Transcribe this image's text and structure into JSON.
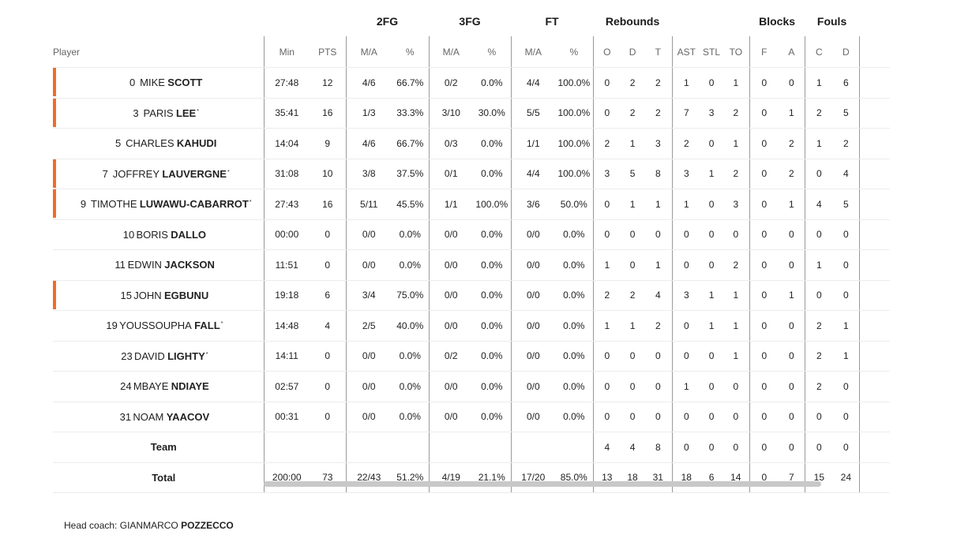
{
  "groups": {
    "fg2": "2FG",
    "fg3": "3FG",
    "ft": "FT",
    "reb": "Rebounds",
    "blk": "Blocks",
    "fouls": "Fouls"
  },
  "columns": {
    "player": "Player",
    "min": "Min",
    "pts": "PTS",
    "ma": "M/A",
    "pct": "%",
    "o": "O",
    "d": "D",
    "t": "T",
    "ast": "AST",
    "stl": "STL",
    "to": "TO",
    "f": "F",
    "a": "A",
    "c": "C",
    "fd": "D"
  },
  "accent_color": "#f26b2a",
  "players": [
    {
      "num": "0",
      "first": "MIKE",
      "last": "SCOTT",
      "mark": "",
      "starter": true,
      "min": "27:48",
      "pts": "12",
      "fg2": "4/6",
      "fg2p": "66.7%",
      "fg3": "0/2",
      "fg3p": "0.0%",
      "ft": "4/4",
      "ftp": "100.0%",
      "o": "0",
      "d": "2",
      "t": "2",
      "ast": "1",
      "stl": "0",
      "to": "1",
      "bf": "0",
      "ba": "0",
      "fc": "1",
      "fd": "6"
    },
    {
      "num": "3",
      "first": "PARIS",
      "last": "LEE",
      "mark": "*",
      "starter": true,
      "min": "35:41",
      "pts": "16",
      "fg2": "1/3",
      "fg2p": "33.3%",
      "fg3": "3/10",
      "fg3p": "30.0%",
      "ft": "5/5",
      "ftp": "100.0%",
      "o": "0",
      "d": "2",
      "t": "2",
      "ast": "7",
      "stl": "3",
      "to": "2",
      "bf": "0",
      "ba": "1",
      "fc": "2",
      "fd": "5"
    },
    {
      "num": "5",
      "first": "CHARLES",
      "last": "KAHUDI",
      "mark": "",
      "starter": false,
      "min": "14:04",
      "pts": "9",
      "fg2": "4/6",
      "fg2p": "66.7%",
      "fg3": "0/3",
      "fg3p": "0.0%",
      "ft": "1/1",
      "ftp": "100.0%",
      "o": "2",
      "d": "1",
      "t": "3",
      "ast": "2",
      "stl": "0",
      "to": "1",
      "bf": "0",
      "ba": "2",
      "fc": "1",
      "fd": "2"
    },
    {
      "num": "7",
      "first": "JOFFREY",
      "last": "LAUVERGNE",
      "mark": "*",
      "starter": true,
      "min": "31:08",
      "pts": "10",
      "fg2": "3/8",
      "fg2p": "37.5%",
      "fg3": "0/1",
      "fg3p": "0.0%",
      "ft": "4/4",
      "ftp": "100.0%",
      "o": "3",
      "d": "5",
      "t": "8",
      "ast": "3",
      "stl": "1",
      "to": "2",
      "bf": "0",
      "ba": "2",
      "fc": "0",
      "fd": "4"
    },
    {
      "num": "9",
      "first": "TIMOTHE",
      "last": "LUWAWU-CABARROT",
      "mark": "*",
      "starter": true,
      "min": "27:43",
      "pts": "16",
      "fg2": "5/11",
      "fg2p": "45.5%",
      "fg3": "1/1",
      "fg3p": "100.0%",
      "ft": "3/6",
      "ftp": "50.0%",
      "o": "0",
      "d": "1",
      "t": "1",
      "ast": "1",
      "stl": "0",
      "to": "3",
      "bf": "0",
      "ba": "1",
      "fc": "4",
      "fd": "5"
    },
    {
      "num": "10",
      "first": "BORIS",
      "last": "DALLO",
      "mark": "",
      "starter": false,
      "min": "00:00",
      "pts": "0",
      "fg2": "0/0",
      "fg2p": "0.0%",
      "fg3": "0/0",
      "fg3p": "0.0%",
      "ft": "0/0",
      "ftp": "0.0%",
      "o": "0",
      "d": "0",
      "t": "0",
      "ast": "0",
      "stl": "0",
      "to": "0",
      "bf": "0",
      "ba": "0",
      "fc": "0",
      "fd": "0"
    },
    {
      "num": "11",
      "first": "EDWIN",
      "last": "JACKSON",
      "mark": "",
      "starter": false,
      "min": "11:51",
      "pts": "0",
      "fg2": "0/0",
      "fg2p": "0.0%",
      "fg3": "0/0",
      "fg3p": "0.0%",
      "ft": "0/0",
      "ftp": "0.0%",
      "o": "1",
      "d": "0",
      "t": "1",
      "ast": "0",
      "stl": "0",
      "to": "2",
      "bf": "0",
      "ba": "0",
      "fc": "1",
      "fd": "0"
    },
    {
      "num": "15",
      "first": "JOHN",
      "last": "EGBUNU",
      "mark": "",
      "starter": true,
      "min": "19:18",
      "pts": "6",
      "fg2": "3/4",
      "fg2p": "75.0%",
      "fg3": "0/0",
      "fg3p": "0.0%",
      "ft": "0/0",
      "ftp": "0.0%",
      "o": "2",
      "d": "2",
      "t": "4",
      "ast": "3",
      "stl": "1",
      "to": "1",
      "bf": "0",
      "ba": "1",
      "fc": "0",
      "fd": "0"
    },
    {
      "num": "19",
      "first": "YOUSSOUPHA",
      "last": "FALL",
      "mark": "*",
      "starter": false,
      "min": "14:48",
      "pts": "4",
      "fg2": "2/5",
      "fg2p": "40.0%",
      "fg3": "0/0",
      "fg3p": "0.0%",
      "ft": "0/0",
      "ftp": "0.0%",
      "o": "1",
      "d": "1",
      "t": "2",
      "ast": "0",
      "stl": "1",
      "to": "1",
      "bf": "0",
      "ba": "0",
      "fc": "2",
      "fd": "1"
    },
    {
      "num": "23",
      "first": "DAVID",
      "last": "LIGHTY",
      "mark": "*",
      "starter": false,
      "min": "14:11",
      "pts": "0",
      "fg2": "0/0",
      "fg2p": "0.0%",
      "fg3": "0/2",
      "fg3p": "0.0%",
      "ft": "0/0",
      "ftp": "0.0%",
      "o": "0",
      "d": "0",
      "t": "0",
      "ast": "0",
      "stl": "0",
      "to": "1",
      "bf": "0",
      "ba": "0",
      "fc": "2",
      "fd": "1"
    },
    {
      "num": "24",
      "first": "MBAYE",
      "last": "NDIAYE",
      "mark": "",
      "starter": false,
      "min": "02:57",
      "pts": "0",
      "fg2": "0/0",
      "fg2p": "0.0%",
      "fg3": "0/0",
      "fg3p": "0.0%",
      "ft": "0/0",
      "ftp": "0.0%",
      "o": "0",
      "d": "0",
      "t": "0",
      "ast": "1",
      "stl": "0",
      "to": "0",
      "bf": "0",
      "ba": "0",
      "fc": "2",
      "fd": "0"
    },
    {
      "num": "31",
      "first": "NOAM",
      "last": "YAACOV",
      "mark": "",
      "starter": false,
      "min": "00:31",
      "pts": "0",
      "fg2": "0/0",
      "fg2p": "0.0%",
      "fg3": "0/0",
      "fg3p": "0.0%",
      "ft": "0/0",
      "ftp": "0.0%",
      "o": "0",
      "d": "0",
      "t": "0",
      "ast": "0",
      "stl": "0",
      "to": "0",
      "bf": "0",
      "ba": "0",
      "fc": "0",
      "fd": "0"
    }
  ],
  "team": {
    "label": "Team",
    "o": "4",
    "d": "4",
    "t": "8",
    "ast": "0",
    "stl": "0",
    "to": "0",
    "bf": "0",
    "ba": "0",
    "fc": "0",
    "fd": "0"
  },
  "total": {
    "label": "Total",
    "min": "200:00",
    "pts": "73",
    "fg2": "22/43",
    "fg2p": "51.2%",
    "fg3": "4/19",
    "fg3p": "21.1%",
    "ft": "17/20",
    "ftp": "85.0%",
    "o": "13",
    "d": "18",
    "t": "31",
    "ast": "18",
    "stl": "6",
    "to": "14",
    "bf": "0",
    "ba": "7",
    "fc": "15",
    "fd": "24"
  },
  "coach": {
    "label": "Head coach:",
    "first": "GIANMARCO",
    "last": "POZZECCO"
  }
}
